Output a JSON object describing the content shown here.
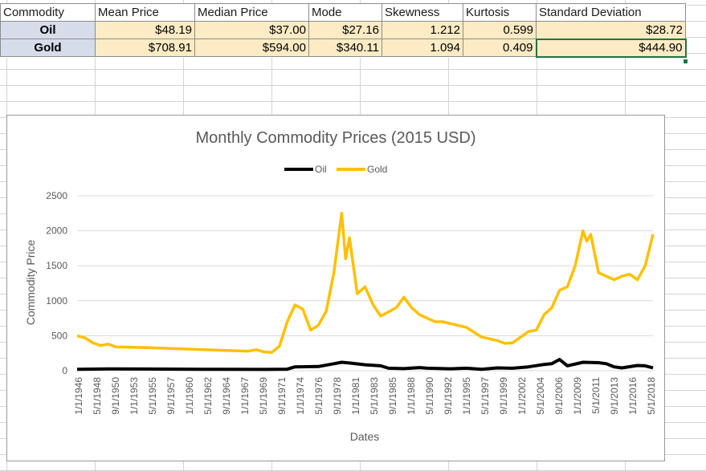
{
  "table": {
    "headers": [
      "Commodity",
      "Mean Price",
      "Median Price",
      "Mode",
      "Skewness",
      "Kurtosis",
      "Standard Deviation"
    ],
    "rows": [
      {
        "label": "Oil",
        "mean": "$48.19",
        "median": "$37.00",
        "mode": "$27.16",
        "skewness": "1.212",
        "kurtosis": "0.599",
        "std": "$28.72"
      },
      {
        "label": "Gold",
        "mean": "$708.91",
        "median": "$594.00",
        "mode": "$340.11",
        "skewness": "1.094",
        "kurtosis": "0.409",
        "std": "$444.90"
      }
    ]
  },
  "chart_data": {
    "type": "line",
    "title": "Monthly Commodity Prices (2015 USD)",
    "xlabel": "Dates",
    "ylabel": "Commodity Price",
    "ylim": [
      0,
      2500
    ],
    "yticks": [
      0,
      500,
      1000,
      1500,
      2000,
      2500
    ],
    "grid": true,
    "legend": "top",
    "x_tick_labels": [
      "1/1/1946",
      "5/1/1948",
      "9/1/1950",
      "1/1/1953",
      "5/1/1955",
      "9/1/1957",
      "1/1/1960",
      "5/1/1962",
      "9/1/1964",
      "1/1/1967",
      "5/1/1969",
      "9/1/1971",
      "1/1/1974",
      "5/1/1976",
      "9/1/1978",
      "1/1/1981",
      "5/1/1983",
      "9/1/1985",
      "1/1/1988",
      "5/1/1990",
      "9/1/1992",
      "1/1/1995",
      "5/1/1997",
      "9/1/1999",
      "1/1/2002",
      "5/1/2004",
      "9/1/2006",
      "1/1/2009",
      "5/1/2011",
      "9/1/2013",
      "1/1/2016",
      "5/1/2018"
    ],
    "series": [
      {
        "name": "Oil",
        "color": "#000000",
        "points": [
          [
            1946,
            20
          ],
          [
            1950,
            25
          ],
          [
            1955,
            24
          ],
          [
            1960,
            22
          ],
          [
            1965,
            20
          ],
          [
            1970,
            18
          ],
          [
            1973,
            22
          ],
          [
            1974,
            55
          ],
          [
            1977,
            60
          ],
          [
            1979,
            100
          ],
          [
            1980,
            120
          ],
          [
            1981,
            110
          ],
          [
            1983,
            85
          ],
          [
            1985,
            70
          ],
          [
            1986,
            35
          ],
          [
            1988,
            30
          ],
          [
            1990,
            45
          ],
          [
            1991,
            35
          ],
          [
            1994,
            28
          ],
          [
            1996,
            35
          ],
          [
            1998,
            20
          ],
          [
            2000,
            40
          ],
          [
            2002,
            35
          ],
          [
            2004,
            55
          ],
          [
            2006,
            90
          ],
          [
            2007,
            100
          ],
          [
            2008,
            160
          ],
          [
            2009,
            70
          ],
          [
            2011,
            120
          ],
          [
            2013,
            115
          ],
          [
            2014,
            100
          ],
          [
            2015,
            55
          ],
          [
            2016,
            40
          ],
          [
            2018,
            75
          ],
          [
            2019,
            70
          ],
          [
            2020,
            40
          ]
        ]
      },
      {
        "name": "Gold",
        "color": "#FFC000",
        "points": [
          [
            1946,
            500
          ],
          [
            1947,
            470
          ],
          [
            1948,
            400
          ],
          [
            1949,
            360
          ],
          [
            1950,
            380
          ],
          [
            1951,
            340
          ],
          [
            1955,
            330
          ],
          [
            1960,
            310
          ],
          [
            1965,
            290
          ],
          [
            1968,
            280
          ],
          [
            1969,
            300
          ],
          [
            1970,
            270
          ],
          [
            1971,
            260
          ],
          [
            1972,
            350
          ],
          [
            1973,
            700
          ],
          [
            1974,
            940
          ],
          [
            1975,
            880
          ],
          [
            1976,
            580
          ],
          [
            1977,
            650
          ],
          [
            1978,
            850
          ],
          [
            1979,
            1400
          ],
          [
            1980,
            2250
          ],
          [
            1980.5,
            1600
          ],
          [
            1981,
            1900
          ],
          [
            1982,
            1100
          ],
          [
            1983,
            1200
          ],
          [
            1984,
            950
          ],
          [
            1985,
            780
          ],
          [
            1987,
            900
          ],
          [
            1988,
            1050
          ],
          [
            1989,
            900
          ],
          [
            1990,
            800
          ],
          [
            1992,
            700
          ],
          [
            1993,
            700
          ],
          [
            1996,
            620
          ],
          [
            1998,
            480
          ],
          [
            2000,
            430
          ],
          [
            2001,
            390
          ],
          [
            2002,
            400
          ],
          [
            2003,
            480
          ],
          [
            2004,
            560
          ],
          [
            2005,
            580
          ],
          [
            2006,
            800
          ],
          [
            2007,
            900
          ],
          [
            2008,
            1150
          ],
          [
            2009,
            1200
          ],
          [
            2010,
            1500
          ],
          [
            2011,
            2000
          ],
          [
            2011.5,
            1850
          ],
          [
            2012,
            1950
          ],
          [
            2013,
            1400
          ],
          [
            2014,
            1350
          ],
          [
            2015,
            1300
          ],
          [
            2016,
            1350
          ],
          [
            2017,
            1380
          ],
          [
            2018,
            1300
          ],
          [
            2019,
            1500
          ],
          [
            2020,
            1950
          ]
        ]
      }
    ]
  }
}
